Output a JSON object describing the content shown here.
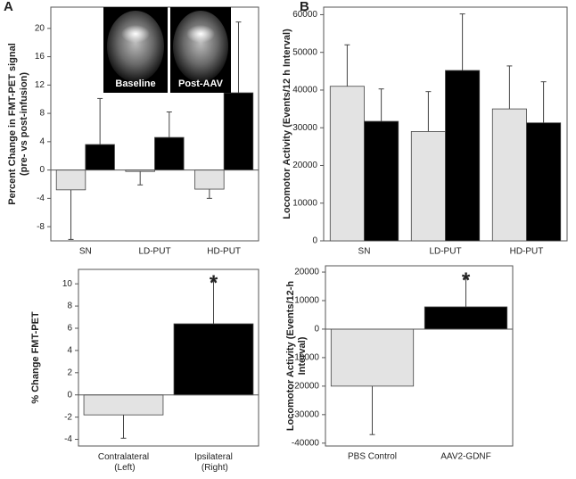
{
  "chart_data": [
    {
      "type": "bar",
      "panel": "A",
      "y_label": [
        "Percent Change in FMT-PET signal",
        "(pre- vs post-infusion)"
      ],
      "categories": [
        "SN",
        "LD-PUT",
        "HD-PUT"
      ],
      "series": [
        {
          "color": "#e3e3e3",
          "values": [
            -2.8,
            -0.2,
            -2.7
          ],
          "errors": [
            7,
            1.9,
            1.3
          ]
        },
        {
          "color": "#000000",
          "values": [
            3.6,
            4.6,
            10.9
          ],
          "errors": [
            6.5,
            3.6,
            10
          ]
        }
      ],
      "ylim": [
        -10,
        23
      ],
      "yticks": [
        -8,
        -4,
        0,
        4,
        8,
        12,
        16,
        20
      ],
      "inset_labels": [
        "Baseline",
        "Post-AAV"
      ]
    },
    {
      "type": "bar",
      "panel": "B",
      "y_label": [
        "Locomotor Activity (Events/12 h Interval)"
      ],
      "categories": [
        "SN",
        "LD-PUT",
        "HD-PUT"
      ],
      "series": [
        {
          "color": "#e3e3e3",
          "values": [
            41000,
            29000,
            35000
          ],
          "errors": [
            11000,
            10600,
            11400
          ]
        },
        {
          "color": "#000000",
          "values": [
            31700,
            45200,
            31300
          ],
          "errors": [
            8600,
            15000,
            10900
          ]
        }
      ],
      "ylim": [
        0,
        62000
      ],
      "yticks": [
        0,
        10000,
        20000,
        30000,
        40000,
        50000,
        60000
      ]
    },
    {
      "type": "bar",
      "y_label": [
        "% Change FMT-PET"
      ],
      "categories": [
        "Contralateral (Left)",
        "Ipsilateral (Right)"
      ],
      "values": [
        -1.8,
        6.4
      ],
      "errors": [
        2.1,
        3.9
      ],
      "colors": [
        "#e3e3e3",
        "#000000"
      ],
      "ylim": [
        -4.6,
        11.3
      ],
      "yticks": [
        -4,
        -2,
        0,
        2,
        4,
        6,
        8,
        10
      ],
      "annotations": [
        "*"
      ]
    },
    {
      "type": "bar",
      "y_label": [
        "Locomotor Activity (Events/12-h",
        "Interval)"
      ],
      "categories": [
        "PBS Control",
        "AAV2-GDNF"
      ],
      "values": [
        -20000,
        7800
      ],
      "errors": [
        17000,
        10200
      ],
      "colors": [
        "#e3e3e3",
        "#000000"
      ],
      "ylim": [
        -41000,
        22200
      ],
      "yticks": [
        -40000,
        -30000,
        -20000,
        -10000,
        0,
        10000,
        20000
      ],
      "annotations": [
        "*"
      ]
    }
  ]
}
